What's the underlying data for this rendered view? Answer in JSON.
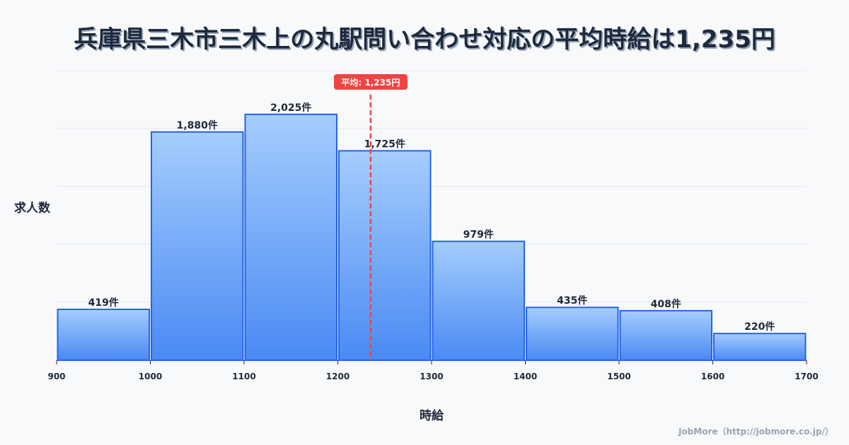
{
  "title": "兵庫県三木市三木上の丸駅問い合わせ対応の平均時給は1,235円",
  "footer": "JobMore（http://jobmore.co.jp/）",
  "colors": {
    "bar_top": "#a5cdfd",
    "bar_bottom": "#4a8af4",
    "bar_stroke": "#2563eb",
    "mean_line": "#ef4444",
    "grid": "#e5e7eb",
    "text": "#1e293b"
  },
  "chart_data": {
    "type": "bar",
    "title": "兵庫県三木市三木上の丸駅問い合わせ対応の平均時給は1,235円",
    "xlabel": "時給",
    "ylabel": "求人数",
    "bin_edges": [
      900,
      1000,
      1100,
      1200,
      1300,
      1400,
      1500,
      1600,
      1700
    ],
    "categories": [
      "900-1000",
      "1000-1100",
      "1100-1200",
      "1200-1300",
      "1300-1400",
      "1400-1500",
      "1500-1600",
      "1600-1700"
    ],
    "values": [
      419,
      1880,
      2025,
      1725,
      979,
      435,
      408,
      220
    ],
    "value_labels": [
      "419件",
      "1,880件",
      "2,025件",
      "1,725件",
      "979件",
      "435件",
      "408件",
      "220件"
    ],
    "x_tick_labels": [
      "900",
      "1000",
      "1100",
      "1200",
      "1300",
      "1400",
      "1500",
      "1600",
      "1700"
    ],
    "xlim": [
      900,
      1700
    ],
    "ylim": [
      0,
      2385
    ],
    "grid": true,
    "y_tick_labels_visible": false,
    "mean": 1235,
    "mean_label": "平均: 1,235円",
    "legend": null
  }
}
